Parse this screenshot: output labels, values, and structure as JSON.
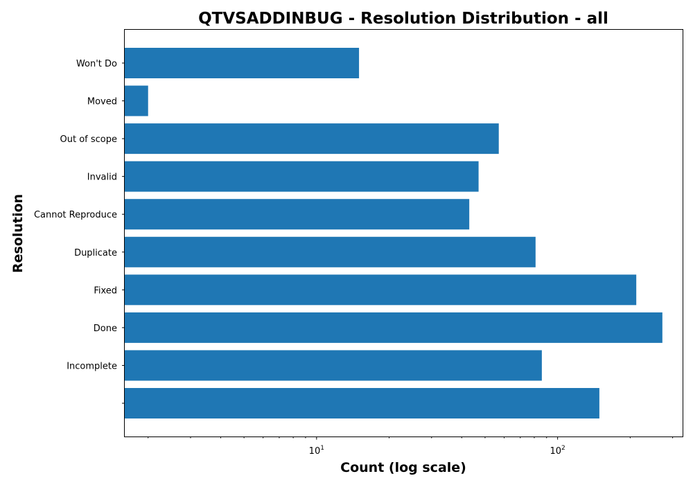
{
  "chart_data": {
    "type": "bar",
    "orientation": "horizontal",
    "title": "QTVSADDINBUG - Resolution Distribution - all",
    "xlabel": "Count (log scale)",
    "ylabel": "Resolution",
    "x_scale": "log",
    "xlim": [
      1.6,
      330
    ],
    "grid": false,
    "categories": [
      "Won't Do",
      "Moved",
      "Out of scope",
      "Invalid",
      "Cannot Reproduce",
      "Duplicate",
      "Fixed",
      "Done",
      "Incomplete",
      ""
    ],
    "values": [
      15,
      2,
      57,
      47,
      43,
      81,
      212,
      272,
      86,
      149
    ],
    "x_ticks": [
      {
        "value": 10,
        "base": "10",
        "exp": "1"
      },
      {
        "value": 100,
        "base": "10",
        "exp": "2"
      }
    ],
    "bar_color": "#1f77b4"
  }
}
